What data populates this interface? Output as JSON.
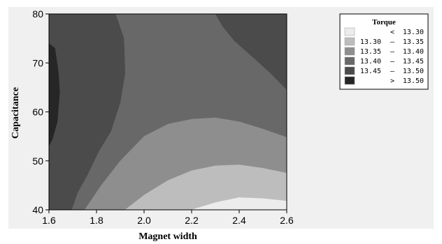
{
  "chart_data": {
    "type": "contour",
    "xlabel": "Magnet width",
    "ylabel": "Capacitance",
    "xlim": [
      1.6,
      2.6
    ],
    "ylim": [
      40,
      80
    ],
    "x_ticks": [
      "1.6",
      "1.8",
      "2.0",
      "2.2",
      "2.4",
      "2.6"
    ],
    "y_ticks": [
      "40",
      "50",
      "60",
      "70",
      "80"
    ],
    "grid": false,
    "legend": {
      "title": "Torque",
      "placement": "right",
      "entries": [
        {
          "lo": "",
          "sep": "<",
          "hi": "13.30",
          "color": "#ececec"
        },
        {
          "lo": "13.30",
          "sep": "–",
          "hi": "13.35",
          "color": "#bdbdbd"
        },
        {
          "lo": "13.35",
          "sep": "–",
          "hi": "13.40",
          "color": "#8e8e8e"
        },
        {
          "lo": "13.40",
          "sep": "–",
          "hi": "13.45",
          "color": "#686868"
        },
        {
          "lo": "13.45",
          "sep": "–",
          "hi": "13.50",
          "color": "#4b4b4b"
        },
        {
          "lo": "",
          "sep": ">",
          "hi": "13.50",
          "color": "#262626"
        }
      ]
    },
    "regions": [
      {
        "level": "13.40 - 13.45",
        "color": "#686868",
        "points": [
          [
            1.6,
            40
          ],
          [
            2.6,
            40
          ],
          [
            2.6,
            80
          ],
          [
            1.6,
            80
          ]
        ]
      },
      {
        "level": "13.45 - 13.50",
        "color": "#4b4b4b",
        "points": [
          [
            1.6,
            80
          ],
          [
            1.88,
            80
          ],
          [
            1.915,
            75
          ],
          [
            1.92,
            68
          ],
          [
            1.9,
            62
          ],
          [
            1.86,
            56
          ],
          [
            1.81,
            52
          ],
          [
            1.76,
            47
          ],
          [
            1.72,
            43.5
          ],
          [
            1.695,
            40
          ],
          [
            1.6,
            40
          ]
        ]
      },
      {
        "level": "13.45 - 13.50",
        "color": "#4b4b4b",
        "points": [
          [
            2.3,
            80
          ],
          [
            2.6,
            80
          ],
          [
            2.6,
            64.5
          ],
          [
            2.53,
            68
          ],
          [
            2.45,
            71.5
          ],
          [
            2.38,
            74.5
          ],
          [
            2.33,
            77.5
          ]
        ]
      },
      {
        "level": "13.35 - 13.40",
        "color": "#8e8e8e",
        "points": [
          [
            1.75,
            40
          ],
          [
            1.82,
            45
          ],
          [
            1.9,
            50
          ],
          [
            2.0,
            55
          ],
          [
            2.1,
            57.5
          ],
          [
            2.2,
            58.5
          ],
          [
            2.3,
            58.8
          ],
          [
            2.4,
            58
          ],
          [
            2.5,
            56.5
          ],
          [
            2.6,
            54.8
          ],
          [
            2.6,
            40
          ]
        ]
      },
      {
        "level": "13.30 - 13.35",
        "color": "#bdbdbd",
        "points": [
          [
            1.92,
            40
          ],
          [
            2.0,
            43
          ],
          [
            2.1,
            46
          ],
          [
            2.2,
            48
          ],
          [
            2.3,
            49
          ],
          [
            2.4,
            49.2
          ],
          [
            2.5,
            48.5
          ],
          [
            2.6,
            47.5
          ],
          [
            2.6,
            40
          ]
        ]
      },
      {
        "level": "< 13.30",
        "color": "#ececec",
        "points": [
          [
            2.2,
            40
          ],
          [
            2.3,
            41.5
          ],
          [
            2.4,
            42.5
          ],
          [
            2.5,
            42.3
          ],
          [
            2.6,
            41.8
          ],
          [
            2.6,
            40
          ]
        ]
      },
      {
        "level": "> 13.50",
        "color": "#262626",
        "points": [
          [
            1.6,
            74
          ],
          [
            1.625,
            73
          ],
          [
            1.64,
            68
          ],
          [
            1.645,
            64
          ],
          [
            1.635,
            58
          ],
          [
            1.615,
            54.5
          ],
          [
            1.6,
            53
          ]
        ]
      }
    ]
  }
}
